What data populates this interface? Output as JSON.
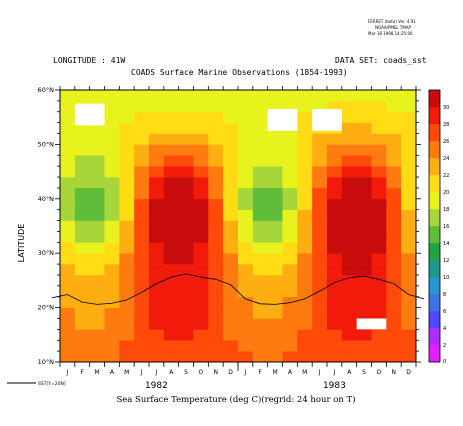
{
  "header": {
    "program_line_1": "FERRET (beta) Ver. 4.91",
    "program_line_2": "NOAA/PMEL TMAP",
    "program_line_3": "Mar 18 1998 14:25:00",
    "longitude": "LONGITUDE : 41W",
    "data_set": "DATA SET: coads_sst",
    "title": "COADS Surface Marine Observations (1854-1993)"
  },
  "colors": {
    "background": "#ffffff",
    "missing": "#ffffff",
    "overlay_line": "#000000"
  },
  "chart_data": {
    "type": "heatmap",
    "title": "COADS Surface Marine Observations (1854-1993)",
    "xlabel": "Sea Surface Temperature (deg C)(regrid: 24 hour on T)",
    "ylabel": "LATITUDE",
    "x_months": [
      "J",
      "F",
      "M",
      "A",
      "M",
      "J",
      "J",
      "A",
      "S",
      "O",
      "N",
      "D",
      "J",
      "F",
      "M",
      "A",
      "M",
      "J",
      "J",
      "A",
      "S",
      "O",
      "N",
      "D"
    ],
    "x_years": [
      "1982",
      "1983"
    ],
    "y_ticks": [
      "10°N",
      "20°N",
      "30°N",
      "40°N",
      "50°N",
      "60°N"
    ],
    "ylim": [
      10,
      60
    ],
    "colorbar": {
      "levels": [
        "0",
        "2",
        "4",
        "6",
        "8",
        "10",
        "12",
        "14",
        "16",
        "18",
        "20",
        "22",
        "24",
        "26",
        "28",
        "30"
      ],
      "colors": [
        "#e41fff",
        "#b02cff",
        "#4c48ff",
        "#3c74e6",
        "#2696d4",
        "#1a9c8a",
        "#21a344",
        "#5fbd3a",
        "#a6d63a",
        "#e8f21c",
        "#ffdc14",
        "#ffae12",
        "#ff7a0f",
        "#ff4a0a",
        "#f21a0a",
        "#c80c0c"
      ]
    },
    "grid": false,
    "legend": {
      "position": "bottom-left",
      "line_label": "SST[Y=20N]"
    },
    "missing_blocks": [
      {
        "months": [
          1,
          2
        ],
        "lat": [
          53.5,
          57.5
        ]
      },
      {
        "months": [
          14,
          15
        ],
        "lat": [
          52.5,
          56.5
        ]
      },
      {
        "months": [
          17,
          18
        ],
        "lat": [
          52.5,
          56.5
        ]
      },
      {
        "months": [
          20,
          21
        ],
        "lat": [
          16.0,
          18.0
        ]
      }
    ],
    "overlay_series": {
      "name": "SST[Y=20N]",
      "units": "deg C",
      "x_month_index": [
        0,
        1,
        2,
        3,
        4,
        5,
        6,
        7,
        8,
        9,
        10,
        11,
        12,
        13,
        14,
        15,
        16,
        17,
        18,
        19,
        20,
        21,
        22,
        23
      ],
      "y": [
        22.4,
        21.0,
        20.6,
        20.8,
        21.4,
        22.8,
        24.4,
        25.6,
        26.2,
        25.6,
        25.2,
        24.2,
        21.6,
        20.7,
        20.6,
        20.9,
        21.6,
        23.0,
        24.6,
        25.5,
        25.8,
        25.2,
        24.4,
        22.4
      ]
    }
  }
}
